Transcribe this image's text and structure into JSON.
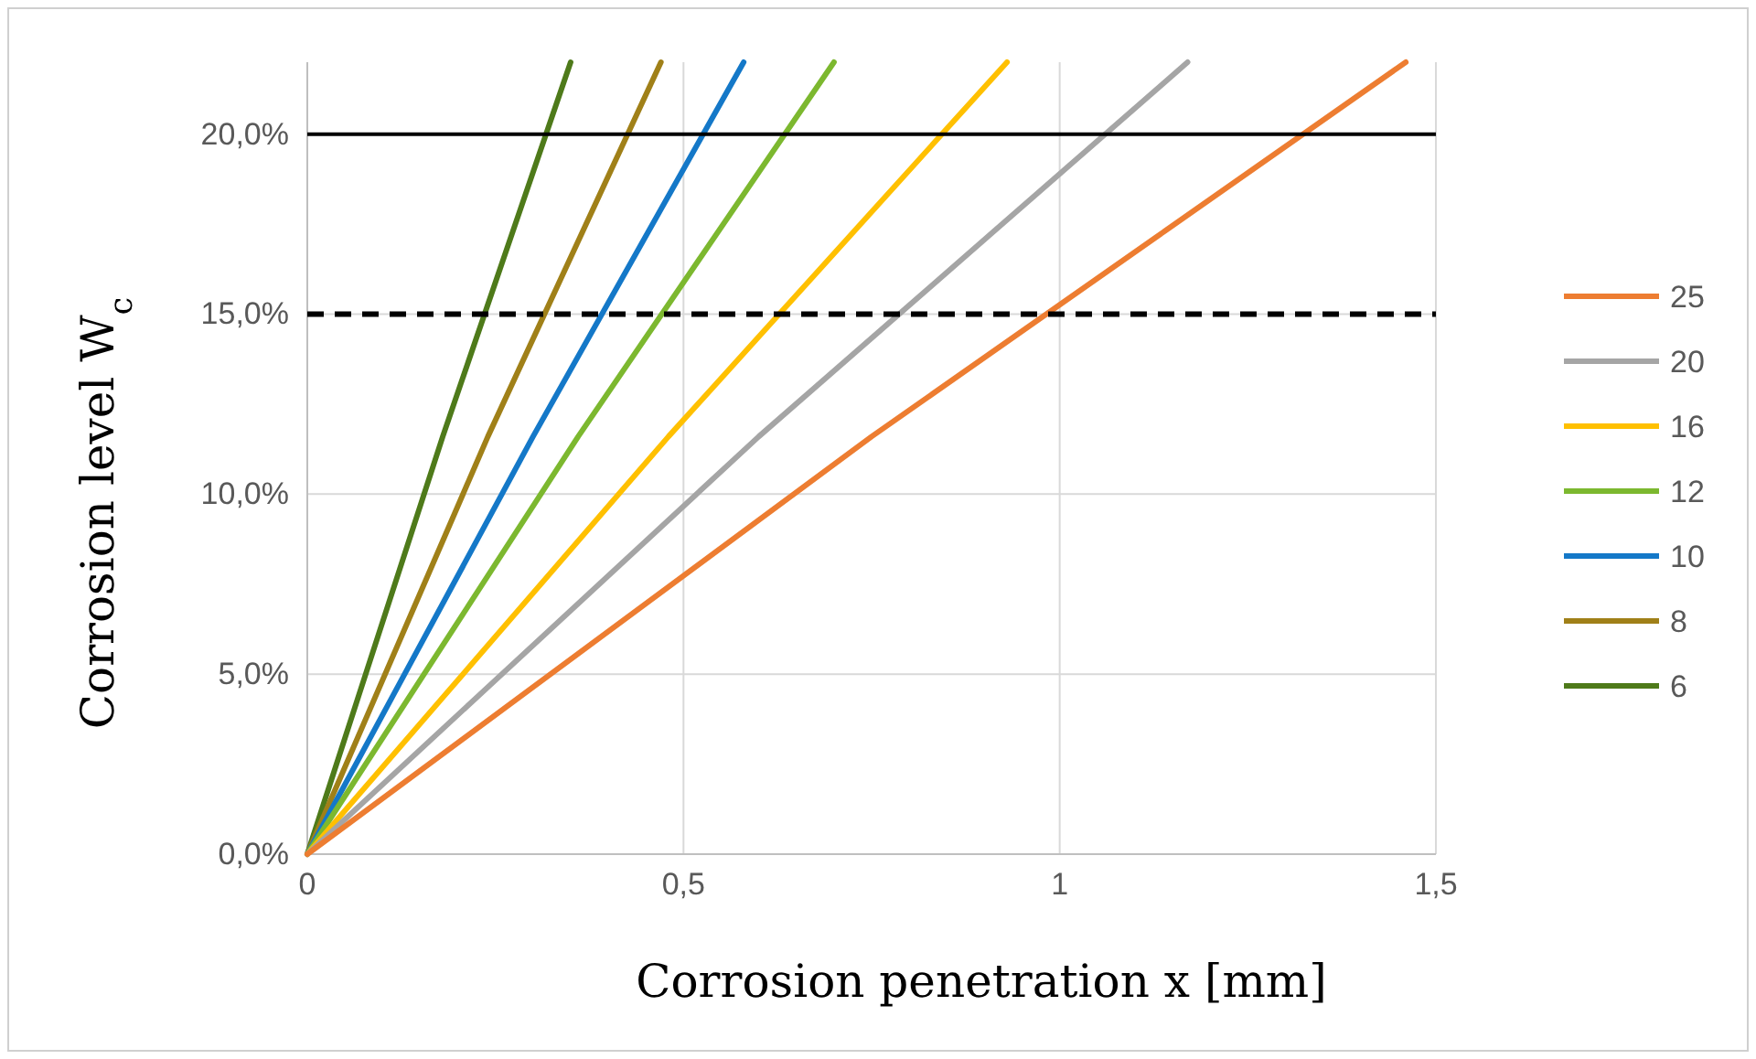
{
  "chart_data": {
    "type": "line",
    "xlabel": "Corrosion penetration x [mm]",
    "ylabel": "Corrosion level W$_{c}$",
    "xlim": [
      0,
      1.5
    ],
    "xticks": [
      0,
      {
        "value": 0.5,
        "label": "0,5"
      },
      1,
      {
        "value": 1.5,
        "label": "1,5"
      }
    ],
    "ylim": [
      0,
      22
    ],
    "yticks": [
      {
        "value": 0,
        "label": "0,0%"
      },
      {
        "value": 5,
        "label": "5,0%"
      },
      {
        "value": 10,
        "label": "10,0%"
      },
      {
        "value": 15,
        "label": "15,0%"
      },
      {
        "value": 20,
        "label": "20,0%"
      }
    ],
    "grid": true,
    "legend": "right",
    "line_style": "solid",
    "marker": "none",
    "ref_lines": [
      {
        "axis": "y",
        "value": 20,
        "color": "#000000",
        "line_style": "solid"
      },
      {
        "axis": "y",
        "value": 15,
        "color": "#000000",
        "line_style": "dashed"
      }
    ],
    "series": [
      {
        "name": "25",
        "color": "#ed7d31",
        "x": [
          0,
          0.75,
          1.46
        ],
        "values": [
          0,
          11.6,
          22
        ]
      },
      {
        "name": "20",
        "color": "#a5a5a5",
        "x": [
          0,
          0.6,
          1.17
        ],
        "values": [
          0,
          11.6,
          22
        ]
      },
      {
        "name": "16",
        "color": "#ffc000",
        "x": [
          0,
          0.48,
          0.93
        ],
        "values": [
          0,
          11.6,
          22
        ]
      },
      {
        "name": "12",
        "color": "#7cb82f",
        "x": [
          0,
          0.36,
          0.7
        ],
        "values": [
          0,
          11.6,
          22
        ]
      },
      {
        "name": "10",
        "color": "#1478c8",
        "x": [
          0,
          0.3,
          0.58
        ],
        "values": [
          0,
          11.6,
          22
        ]
      },
      {
        "name": "8",
        "color": "#a08018",
        "x": [
          0,
          0.24,
          0.47
        ],
        "values": [
          0,
          11.6,
          22
        ]
      },
      {
        "name": "6",
        "color": "#4e7a1a",
        "x": [
          0,
          0.18,
          0.35
        ],
        "values": [
          0,
          11.6,
          22
        ]
      }
    ]
  }
}
